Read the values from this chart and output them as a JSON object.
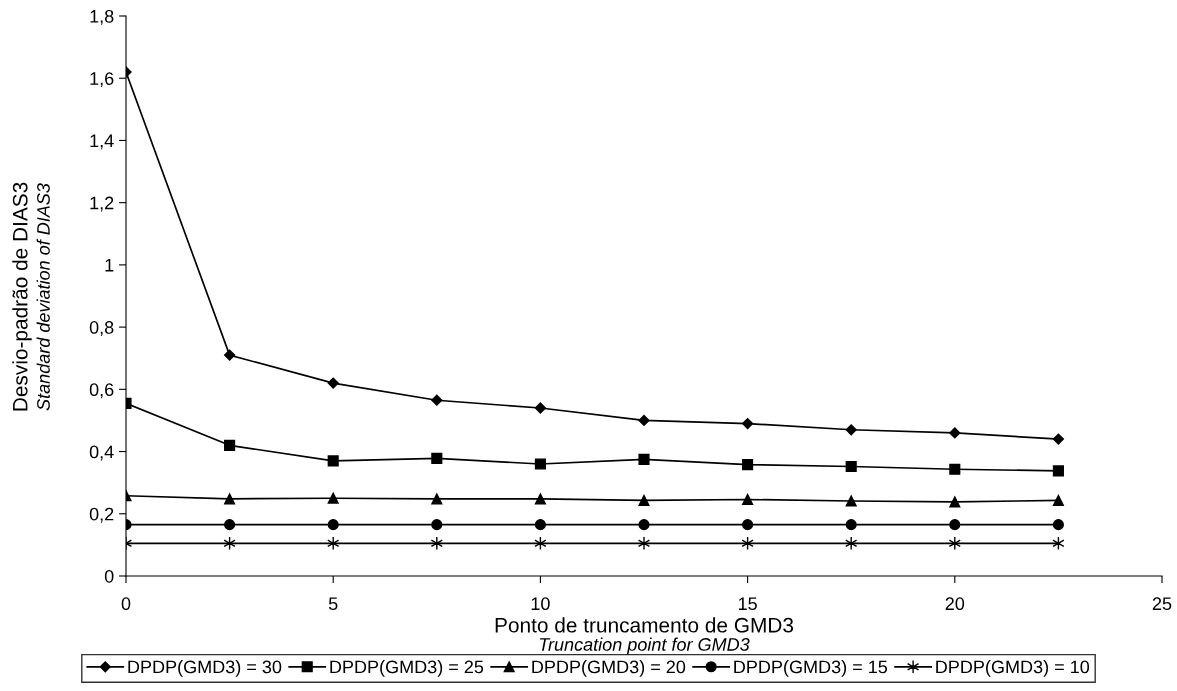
{
  "chart_data": {
    "type": "line",
    "xlabel": "Ponto de truncamento de GMD3\nTruncation point for GMD3",
    "ylabel": "Desvio-padrão de DIAS3\nStandard deviation of DIAS3",
    "x": [
      0,
      2.5,
      5,
      7.5,
      10,
      12.5,
      15,
      17.5,
      20,
      22.5
    ],
    "series": [
      {
        "name": "DPDP(GMD3) = 30",
        "color": "#000000",
        "marker": "diamond",
        "values": [
          1.62,
          0.71,
          0.62,
          0.565,
          0.54,
          0.5,
          0.49,
          0.47,
          0.46,
          0.44
        ]
      },
      {
        "name": "DPDP(GMD3) = 25",
        "color": "#000000",
        "marker": "square",
        "values": [
          0.555,
          0.42,
          0.37,
          0.378,
          0.36,
          0.375,
          0.358,
          0.352,
          0.343,
          0.338
        ]
      },
      {
        "name": "DPDP(GMD3) = 20",
        "color": "#000000",
        "marker": "triangle",
        "values": [
          0.258,
          0.248,
          0.25,
          0.248,
          0.248,
          0.243,
          0.246,
          0.241,
          0.238,
          0.243
        ]
      },
      {
        "name": "DPDP(GMD3) = 15",
        "color": "#000000",
        "marker": "circle",
        "values": [
          0.165,
          0.165,
          0.165,
          0.165,
          0.165,
          0.165,
          0.165,
          0.165,
          0.165,
          0.165
        ]
      },
      {
        "name": "DPDP(GMD3) = 10",
        "color": "#000000",
        "marker": "cross",
        "values": [
          0.105,
          0.105,
          0.105,
          0.105,
          0.105,
          0.105,
          0.105,
          0.105,
          0.105,
          0.105
        ]
      }
    ],
    "xlim": [
      0,
      25
    ],
    "xticks": [
      0,
      5,
      10,
      15,
      20,
      25
    ],
    "ylim": [
      0,
      1.8
    ],
    "yticks": [
      0,
      {
        "value": 0.2,
        "label": "0,2"
      },
      {
        "value": 0.4,
        "label": "0,4"
      },
      {
        "value": 0.6,
        "label": "0,6"
      },
      {
        "value": 0.8,
        "label": "0,8"
      },
      1,
      {
        "value": 1.2,
        "label": "1,2"
      },
      {
        "value": 1.4,
        "label": "1,4"
      },
      {
        "value": 1.6,
        "label": "1,6"
      },
      {
        "value": 1.8,
        "label": "1,8"
      }
    ],
    "grid": false,
    "legend": "bottom",
    "line_style": "solid"
  }
}
